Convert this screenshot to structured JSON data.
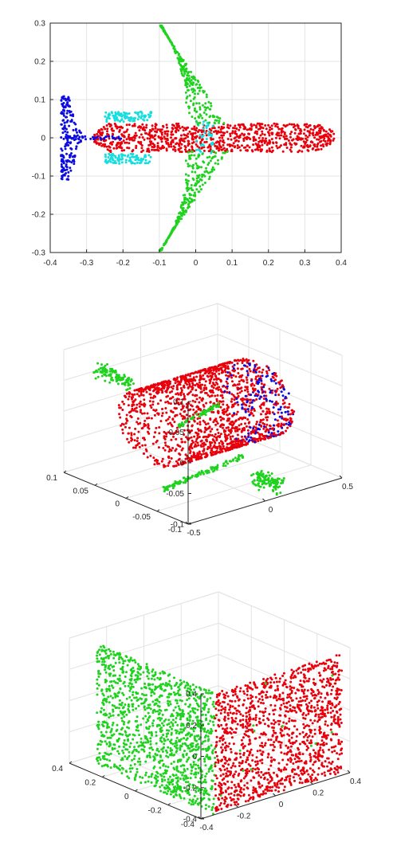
{
  "chart_data": [
    {
      "type": "scatter",
      "view": "2d",
      "title": "",
      "xlabel": "",
      "ylabel": "",
      "xlim": [
        -0.4,
        0.4
      ],
      "ylim": [
        -0.3,
        0.3
      ],
      "xticks": [
        "-0.4",
        "-0.3",
        "-0.2",
        "-0.1",
        "0",
        "0.1",
        "0.2",
        "0.3",
        "0.4"
      ],
      "yticks": [
        "-0.3",
        "-0.2",
        "-0.1",
        "0",
        "0.1",
        "0.2",
        "0.3"
      ],
      "grid": true,
      "colors": {
        "fuselage": "#e8000b",
        "wings": "#1fd21f",
        "tail": "#0c0ce0",
        "engines": "#16dede"
      }
    },
    {
      "type": "scatter",
      "view": "3d",
      "title": "",
      "xlim": [
        -0.5,
        0.5
      ],
      "ylim": [
        -0.1,
        0.1
      ],
      "zlim": [
        -0.1,
        0.1
      ],
      "xticks": [
        "-0.5",
        "0",
        "0.5"
      ],
      "yticks": [
        "-0.1",
        "-0.05",
        "0",
        "0.05",
        "0.1"
      ],
      "zticks": [
        "-0.1",
        "-0.05",
        "0",
        "0.05",
        "0.1"
      ],
      "grid": true,
      "colors": {
        "body": "#e8000b",
        "fins": "#1fd21f",
        "nose": "#0c0ce0"
      }
    },
    {
      "type": "scatter",
      "view": "3d",
      "title": "",
      "xlim": [
        -0.4,
        0.4
      ],
      "ylim": [
        -0.4,
        0.4
      ],
      "zlim": [
        -0.4,
        0.4
      ],
      "xticks": [
        "-0.4",
        "-0.2",
        "0",
        "0.2",
        "0.4"
      ],
      "yticks": [
        "-0.4",
        "-0.2",
        "0",
        "0.2",
        "0.4"
      ],
      "zticks": [
        "-0.4",
        "-0.2",
        "0",
        "0.2",
        "0.4"
      ],
      "grid": true,
      "colors": {
        "face_a": "#1fd21f",
        "face_b": "#e8000b"
      }
    }
  ]
}
